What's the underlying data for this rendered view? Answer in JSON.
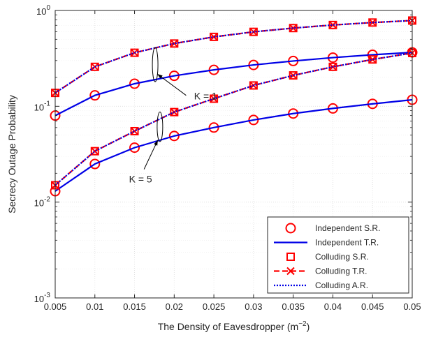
{
  "chart_data": {
    "type": "line",
    "xlabel": "The Density of Eavesdropper (m",
    "xlabel_sup": "−2",
    "xlabel_tail": ")",
    "ylabel": "Secrecy Outage Probability",
    "xlim": [
      0.005,
      0.05
    ],
    "ylim": [
      0.001,
      1
    ],
    "yscale": "log",
    "grid": true,
    "legend_position": "bottom-right",
    "x_ticks": [
      "0.005",
      "0.01",
      "0.015",
      "0.02",
      "0.025",
      "0.03",
      "0.035",
      "0.04",
      "0.045",
      "0.05"
    ],
    "y_ticks": [
      {
        "base": "10",
        "exp": "-3",
        "value": 0.001
      },
      {
        "base": "10",
        "exp": "-2",
        "value": 0.01
      },
      {
        "base": "10",
        "exp": "-1",
        "value": 0.1
      },
      {
        "base": "10",
        "exp": "0",
        "value": 1
      }
    ],
    "x": [
      0.005,
      0.01,
      0.015,
      0.02,
      0.025,
      0.03,
      0.035,
      0.04,
      0.045,
      0.05
    ],
    "series": [
      {
        "name": "Independent S.R.",
        "style": "circle",
        "color": "#ff0000",
        "values": [
          0.08,
          0.13,
          0.172,
          0.208,
          0.24,
          0.27,
          0.297,
          0.322,
          0.345,
          0.365
        ]
      },
      {
        "name": "Independent T.R.",
        "style": "solid",
        "color": "#0000e6",
        "values": [
          0.08,
          0.13,
          0.172,
          0.208,
          0.24,
          0.27,
          0.297,
          0.322,
          0.345,
          0.365
        ]
      },
      {
        "name": "Colluding S.R.",
        "style": "square",
        "color": "#ff0000",
        "values": [
          0.138,
          0.258,
          0.362,
          0.452,
          0.53,
          0.598,
          0.655,
          0.705,
          0.748,
          0.785
        ]
      },
      {
        "name": "Colluding T.R.",
        "style": "dashed-x",
        "color": "#ff0000",
        "values": [
          0.138,
          0.258,
          0.362,
          0.452,
          0.53,
          0.598,
          0.655,
          0.705,
          0.748,
          0.785
        ]
      },
      {
        "name": "Colluding A.R.",
        "style": "dotted",
        "color": "#0000e6",
        "values": [
          0.138,
          0.258,
          0.362,
          0.452,
          0.53,
          0.598,
          0.655,
          0.705,
          0.748,
          0.785
        ]
      },
      {
        "name": "Independent S.R.",
        "legend": false,
        "style": "circle",
        "color": "#ff0000",
        "values": [
          0.013,
          0.025,
          0.037,
          0.049,
          0.06,
          0.072,
          0.084,
          0.095,
          0.106,
          0.117
        ]
      },
      {
        "name": "Independent T.R.",
        "legend": false,
        "style": "solid",
        "color": "#0000e6",
        "values": [
          0.013,
          0.025,
          0.037,
          0.049,
          0.06,
          0.072,
          0.084,
          0.095,
          0.106,
          0.117
        ]
      },
      {
        "name": "Colluding S.R.",
        "legend": false,
        "style": "square",
        "color": "#ff0000",
        "values": [
          0.015,
          0.034,
          0.055,
          0.087,
          0.12,
          0.165,
          0.21,
          0.258,
          0.308,
          0.36
        ]
      },
      {
        "name": "Colluding T.R.",
        "legend": false,
        "style": "dashed-x",
        "color": "#ff0000",
        "values": [
          0.015,
          0.034,
          0.055,
          0.087,
          0.12,
          0.165,
          0.21,
          0.258,
          0.308,
          0.36
        ]
      },
      {
        "name": "Colluding A.R.",
        "legend": false,
        "style": "dotted",
        "color": "#0000e6",
        "values": [
          0.015,
          0.034,
          0.055,
          0.087,
          0.12,
          0.165,
          0.21,
          0.258,
          0.308,
          0.36
        ]
      }
    ],
    "annotations": [
      {
        "label": "K = 1",
        "ellipse_x": 0.0176,
        "ellipse_y": [
          0.19,
          0.39
        ],
        "arrow_tail": [
          0.0215,
          0.13
        ],
        "text_x": 0.0225,
        "text_y": 0.128
      },
      {
        "label": "K = 5",
        "ellipse_x": 0.0182,
        "ellipse_y": [
          0.045,
          0.083
        ],
        "arrow_tail": [
          0.0162,
          0.022
        ],
        "text_x": 0.0143,
        "text_y": 0.0175
      }
    ]
  }
}
